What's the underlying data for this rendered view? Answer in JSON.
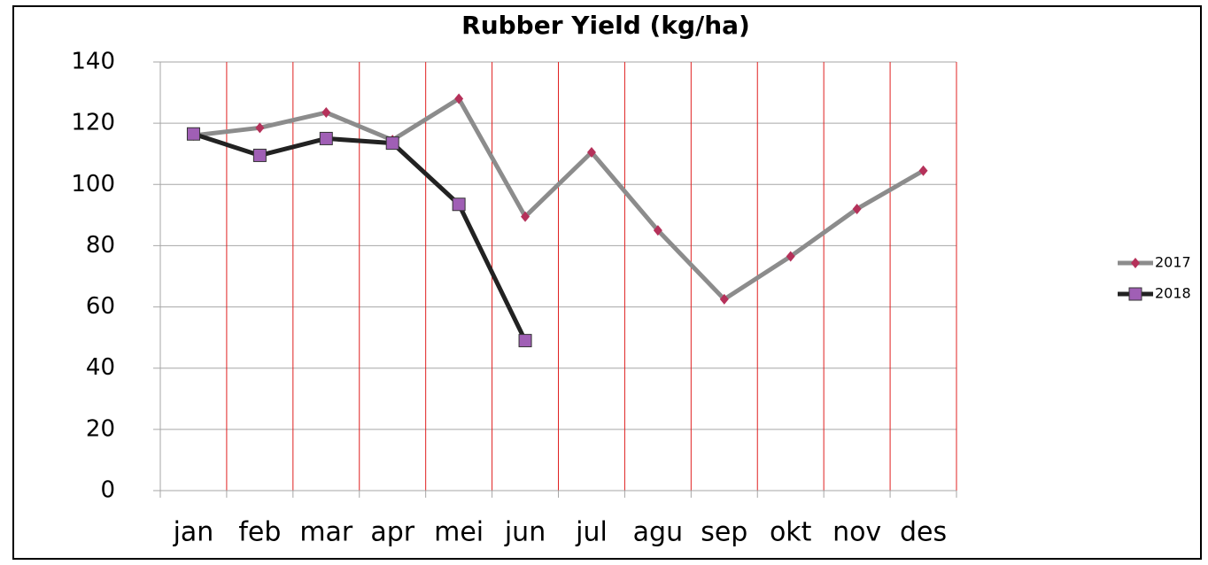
{
  "chart_data": {
    "type": "line",
    "title": "Rubber Yield (kg/ha)",
    "categories": [
      "jan",
      "feb",
      "mar",
      "apr",
      "mei",
      "jun",
      "jul",
      "agu",
      "sep",
      "okt",
      "nov",
      "des"
    ],
    "series": [
      {
        "name": "2017",
        "color": "#8c8c8c",
        "marker": "diamond",
        "marker_color": "#b5315a",
        "values": [
          116,
          118.5,
          123.5,
          114.5,
          128,
          89.5,
          110.5,
          85,
          62.5,
          76.5,
          92,
          104.5
        ]
      },
      {
        "name": "2018",
        "color": "#222222",
        "marker": "square",
        "marker_color": "#a05fb5",
        "values": [
          116.5,
          109.5,
          115,
          113.5,
          93.5,
          49,
          null,
          null,
          null,
          null,
          null,
          null
        ]
      }
    ],
    "ylim": [
      0,
      140
    ],
    "yticks": [
      0,
      20,
      40,
      60,
      80,
      100,
      120,
      140
    ],
    "grid": true,
    "legend": "right"
  }
}
